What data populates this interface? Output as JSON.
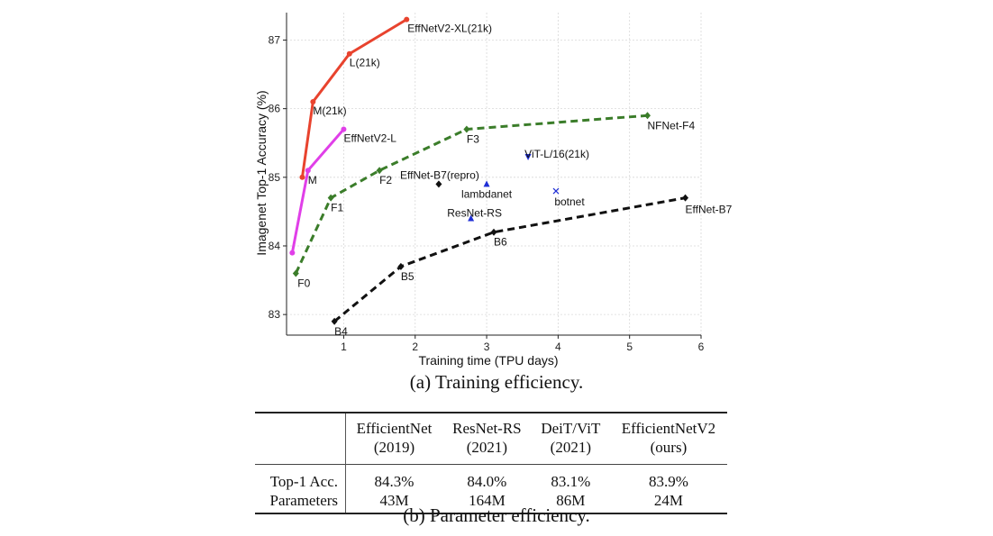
{
  "chart_data": {
    "type": "line",
    "xlabel": "Training time (TPU days)",
    "ylabel": "Imagenet Top-1 Accuracy (%)",
    "xlim": [
      0.2,
      6.0
    ],
    "ylim": [
      82.7,
      87.4
    ],
    "xticks": [
      1,
      2,
      3,
      4,
      5,
      6
    ],
    "yticks": [
      83,
      84,
      85,
      86,
      87
    ],
    "grid": true,
    "series": [
      {
        "color": "#e8432e",
        "dash": false,
        "marker": "circle",
        "points": [
          {
            "x": 0.42,
            "y": 85.0,
            "label": ""
          },
          {
            "x": 0.57,
            "y": 86.1,
            "label": "M(21k)"
          },
          {
            "x": 1.08,
            "y": 86.8,
            "label": "L(21k)"
          },
          {
            "x": 1.88,
            "y": 87.3,
            "label": "EffNetV2-XL(21k)"
          }
        ]
      },
      {
        "color": "#e03fe8",
        "dash": false,
        "marker": "circle",
        "points": [
          {
            "x": 0.28,
            "y": 83.9,
            "label": ""
          },
          {
            "x": 0.5,
            "y": 85.1,
            "label": "M"
          },
          {
            "x": 1.0,
            "y": 85.7,
            "label": "EffNetV2-L"
          }
        ]
      },
      {
        "color": "#3b7d2a",
        "dash": true,
        "marker": "diamond",
        "points": [
          {
            "x": 0.33,
            "y": 83.6,
            "label": "F0"
          },
          {
            "x": 0.82,
            "y": 84.7,
            "label": "F1"
          },
          {
            "x": 1.5,
            "y": 85.1,
            "label": "F2"
          },
          {
            "x": 2.72,
            "y": 85.7,
            "label": "F3"
          },
          {
            "x": 5.25,
            "y": 85.9,
            "label": "NFNet-F4"
          }
        ]
      },
      {
        "color": "#111111",
        "dash": true,
        "marker": "diamond",
        "points": [
          {
            "x": 0.87,
            "y": 82.9,
            "label": "B4"
          },
          {
            "x": 1.8,
            "y": 83.7,
            "label": "B5"
          },
          {
            "x": 3.1,
            "y": 84.2,
            "label": "B6"
          },
          {
            "x": 5.78,
            "y": 84.7,
            "label": "EffNet-B7"
          }
        ]
      }
    ],
    "points": [
      {
        "x": 2.33,
        "y": 84.9,
        "label": "EffNet-B7(repro)",
        "marker": "diamond",
        "color": "#111111"
      },
      {
        "x": 3.0,
        "y": 84.9,
        "label": "lambdanet",
        "marker": "triangle-up",
        "color": "#1f2fd6"
      },
      {
        "x": 2.78,
        "y": 84.4,
        "label": "ResNet-RS",
        "marker": "triangle-up",
        "color": "#1f2fd6"
      },
      {
        "x": 3.58,
        "y": 85.3,
        "label": "ViT-L/16(21k)",
        "marker": "triangle-down",
        "color": "#1f2fd6"
      },
      {
        "x": 3.97,
        "y": 84.8,
        "label": "botnet",
        "marker": "x",
        "color": "#1f2fd6"
      }
    ]
  },
  "captions": {
    "training": "(a) Training efficiency.",
    "parameter": "(b) Parameter efficiency."
  },
  "table": {
    "columns": [
      {
        "name": "EfficientNet",
        "year": "(2019)"
      },
      {
        "name": "ResNet-RS",
        "year": "(2021)"
      },
      {
        "name": "DeiT/ViT",
        "year": "(2021)"
      },
      {
        "name": "EfficientNetV2",
        "year": "(ours)"
      }
    ],
    "rows": [
      {
        "label": "Top-1 Acc.",
        "values": [
          "84.3%",
          "84.0%",
          "83.1%",
          "83.9%"
        ]
      },
      {
        "label": "Parameters",
        "values": [
          "43M",
          "164M",
          "86M",
          "24M"
        ]
      }
    ]
  }
}
